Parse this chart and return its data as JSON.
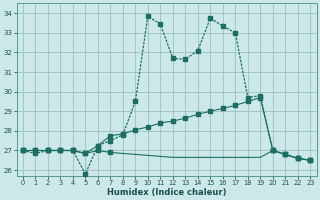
{
  "xlabel": "Humidex (Indice chaleur)",
  "bg_color": "#cce8e8",
  "grid_color": "#9dbfbf",
  "line_color": "#1a6e62",
  "xlim": [
    -0.5,
    23.5
  ],
  "ylim": [
    25.7,
    34.5
  ],
  "yticks": [
    26,
    27,
    28,
    29,
    30,
    31,
    32,
    33,
    34
  ],
  "xticks": [
    0,
    1,
    2,
    3,
    4,
    5,
    6,
    7,
    8,
    9,
    10,
    11,
    12,
    13,
    14,
    15,
    16,
    17,
    18,
    19,
    20,
    21,
    22,
    23
  ],
  "line1_x": [
    0,
    1,
    2,
    3,
    4,
    5,
    6,
    7,
    8,
    9,
    10,
    11,
    12,
    13,
    14,
    15,
    16,
    17,
    18,
    19,
    20,
    21,
    22,
    23
  ],
  "line1_y": [
    27.0,
    26.85,
    27.0,
    27.0,
    27.0,
    25.8,
    27.25,
    27.5,
    27.8,
    29.5,
    33.85,
    33.45,
    31.7,
    31.65,
    32.1,
    33.75,
    33.35,
    33.0,
    29.7,
    29.8,
    27.0,
    26.8,
    26.6,
    26.5
  ],
  "line2_x": [
    0,
    1,
    2,
    3,
    4,
    5,
    6,
    7,
    8,
    9,
    10,
    11,
    12,
    13,
    14,
    15,
    16,
    17,
    18,
    19,
    20,
    21,
    22,
    23
  ],
  "line2_y": [
    27.0,
    27.0,
    27.0,
    27.0,
    27.0,
    26.85,
    27.25,
    27.75,
    27.85,
    28.05,
    28.2,
    28.4,
    28.5,
    28.65,
    28.85,
    29.0,
    29.15,
    29.3,
    29.5,
    29.7,
    27.0,
    26.8,
    26.6,
    26.5
  ],
  "line3_x": [
    0,
    1,
    2,
    3,
    4,
    5,
    6,
    7,
    8,
    9,
    10,
    11,
    12,
    13,
    14,
    15,
    16,
    17,
    18,
    19,
    20,
    21,
    22,
    23
  ],
  "line3_y": [
    27.0,
    27.0,
    27.0,
    27.0,
    27.0,
    26.85,
    27.0,
    26.9,
    26.85,
    26.8,
    26.75,
    26.7,
    26.65,
    26.65,
    26.65,
    26.65,
    26.65,
    26.65,
    26.65,
    26.65,
    27.0,
    26.8,
    26.6,
    26.5
  ]
}
